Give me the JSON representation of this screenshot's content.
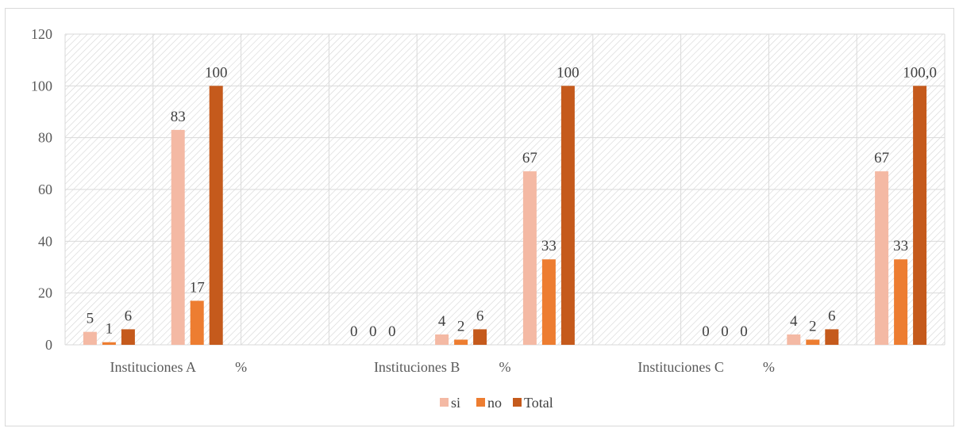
{
  "chart_data": {
    "type": "bar",
    "categories": [
      "",
      "Instituciones A",
      "%",
      "",
      "Instituciones B",
      "%",
      "",
      "Instituciones C",
      "%",
      ""
    ],
    "series": [
      {
        "name": "si",
        "values": [
          5,
          83,
          null,
          0,
          4,
          67,
          null,
          0,
          4,
          67
        ],
        "labels": [
          "5",
          "83",
          "",
          "0",
          "4",
          "67",
          "",
          "0",
          "4",
          "67"
        ]
      },
      {
        "name": "no",
        "values": [
          1,
          17,
          null,
          0,
          2,
          33,
          null,
          0,
          2,
          33
        ],
        "labels": [
          "1",
          "17",
          "",
          "0",
          "2",
          "33",
          "",
          "0",
          "2",
          "33"
        ]
      },
      {
        "name": "Total",
        "values": [
          6,
          100,
          null,
          0,
          6,
          100,
          null,
          0,
          6,
          100
        ],
        "labels": [
          "6",
          "100",
          "",
          "0",
          "6",
          "100",
          "",
          "0",
          "6",
          "100,0"
        ]
      }
    ],
    "ylim": [
      0,
      120
    ],
    "yticks": [
      0,
      20,
      40,
      60,
      80,
      100,
      120
    ],
    "grid": true,
    "legend": "bottom",
    "colors": {
      "si": "#f4b9a4",
      "no": "#ed7d31",
      "Total": "#c55a1c",
      "grid": "#d9d9d9",
      "hatch": "#cfcfcf"
    }
  }
}
